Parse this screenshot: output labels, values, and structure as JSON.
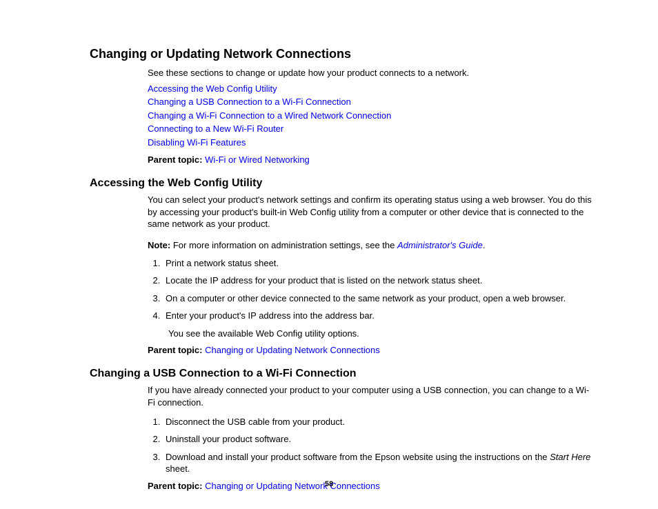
{
  "main": {
    "title": "Changing or Updating Network Connections",
    "intro": "See these sections to change or update how your product connects to a network.",
    "links": [
      "Accessing the Web Config Utility",
      "Changing a USB Connection to a Wi-Fi Connection",
      "Changing a Wi-Fi Connection to a Wired Network Connection",
      "Connecting to a New Wi-Fi Router",
      "Disabling Wi-Fi Features"
    ],
    "parent_label": "Parent topic:",
    "parent_link": "Wi-Fi or Wired Networking"
  },
  "section1": {
    "title": "Accessing the Web Config Utility",
    "body": "You can select your product's network settings and confirm its operating status using a web browser. You do this by accessing your product's built-in Web Config utility from a computer or other device that is connected to the same network as your product.",
    "note_label": "Note:",
    "note_text": " For more information on administration settings, see the ",
    "note_link": "Administrator's Guide",
    "note_tail": ".",
    "steps": [
      "Print a network status sheet.",
      "Locate the IP address for your product that is listed on the network status sheet.",
      "On a computer or other device connected to the same network as your product, open a web browser.",
      "Enter your product's IP address into the address bar."
    ],
    "after_step4": "You see the available Web Config utility options.",
    "parent_label": "Parent topic:",
    "parent_link": "Changing or Updating Network Connections"
  },
  "section2": {
    "title": "Changing a USB Connection to a Wi-Fi Connection",
    "body": "If you have already connected your product to your computer using a USB connection, you can change to a Wi-Fi connection.",
    "steps": [
      "Disconnect the USB cable from your product.",
      "Uninstall your product software."
    ],
    "step3_a": "Download and install your product software from the Epson website using the instructions on the ",
    "step3_italic": "Start Here",
    "step3_b": " sheet.",
    "parent_label": "Parent topic:",
    "parent_link": "Changing or Updating Network Connections"
  },
  "page_number": "58"
}
